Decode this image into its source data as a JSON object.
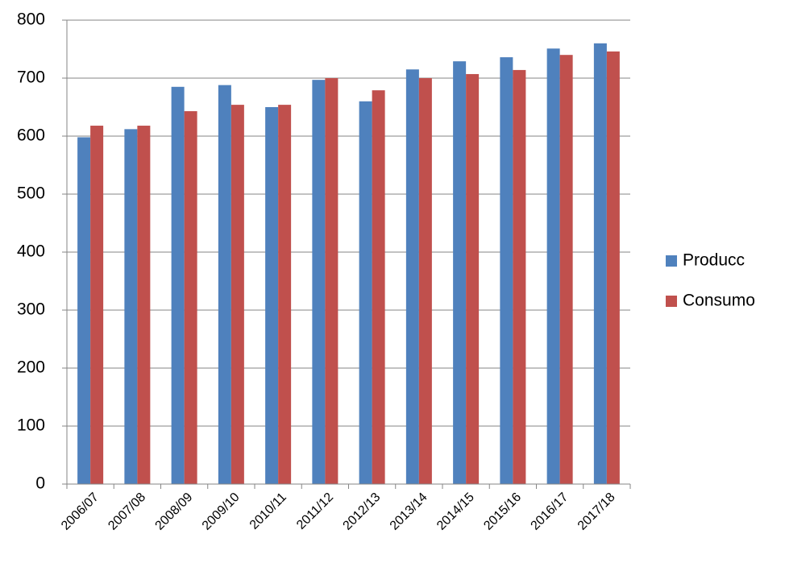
{
  "chart_data": {
    "type": "bar",
    "categories": [
      "2006/07",
      "2007/08",
      "2008/09",
      "2009/10",
      "2010/11",
      "2011/12",
      "2012/13",
      "2013/14",
      "2014/15",
      "2015/16",
      "2016/17",
      "2017/18"
    ],
    "series": [
      {
        "name": "Producc",
        "color": "#4f81bd",
        "values": [
          598,
          612,
          685,
          688,
          650,
          697,
          660,
          715,
          729,
          736,
          751,
          760
        ]
      },
      {
        "name": "Consumo",
        "color": "#c0504d",
        "values": [
          618,
          618,
          643,
          654,
          654,
          700,
          679,
          700,
          707,
          714,
          740,
          746
        ]
      }
    ],
    "ylim": [
      0,
      800
    ],
    "yticks": [
      0,
      100,
      200,
      300,
      400,
      500,
      600,
      700,
      800
    ],
    "grid": true,
    "legend": "right"
  }
}
